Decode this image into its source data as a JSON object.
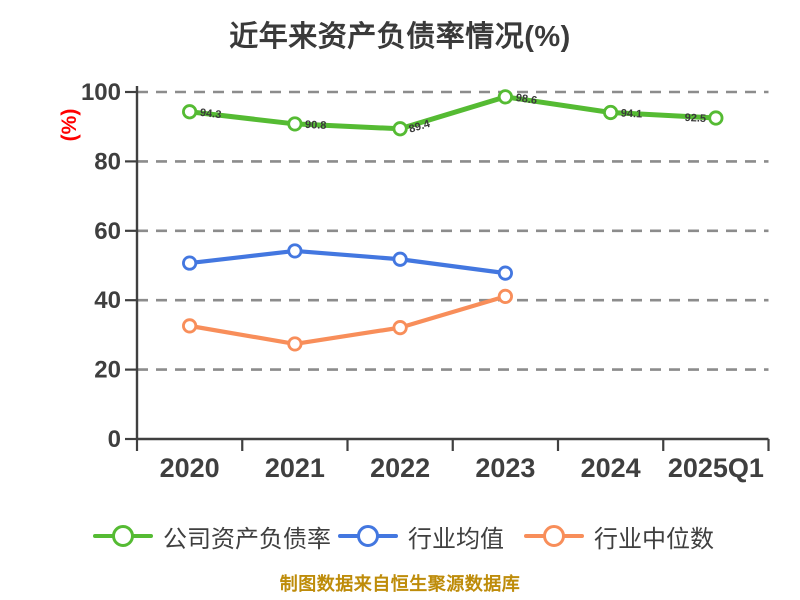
{
  "chart_data": {
    "type": "line",
    "title": "近年来资产负债率情况(%)",
    "ylabel": "(%)",
    "ylim": [
      0,
      100
    ],
    "yticks": [
      0,
      20,
      40,
      60,
      80,
      100
    ],
    "grid": "horizontal-dashed",
    "legend_position": "bottom",
    "categories": [
      "2020",
      "2021",
      "2022",
      "2023",
      "2024",
      "2025Q1"
    ],
    "series": [
      {
        "key": "company-debt-ratio",
        "name": "公司资产负债率",
        "color": "#55BB33",
        "values": [
          94.3,
          90.8,
          89.4,
          98.6,
          94.1,
          92.5
        ],
        "point_labels": true
      },
      {
        "key": "industry-mean",
        "name": "行业均值",
        "color": "#4377E0",
        "values": [
          50.7,
          54.2,
          51.8,
          47.8
        ],
        "point_labels": false
      },
      {
        "key": "industry-median",
        "name": "行业中位数",
        "color": "#F88E5A",
        "values": [
          32.6,
          27.4,
          32.1,
          41.1
        ],
        "point_labels": false
      }
    ]
  },
  "caption": {
    "text": "制图数据来自恒生聚源数据库",
    "color": "#BE8C0A"
  },
  "colors": {
    "axis": "#404040",
    "grid": "#8C8C8C",
    "tick_text": "#3F3F3F",
    "y_axis_label": "#FF0000",
    "point_label": "#3A3A3A",
    "background": "#FFFFFF"
  }
}
